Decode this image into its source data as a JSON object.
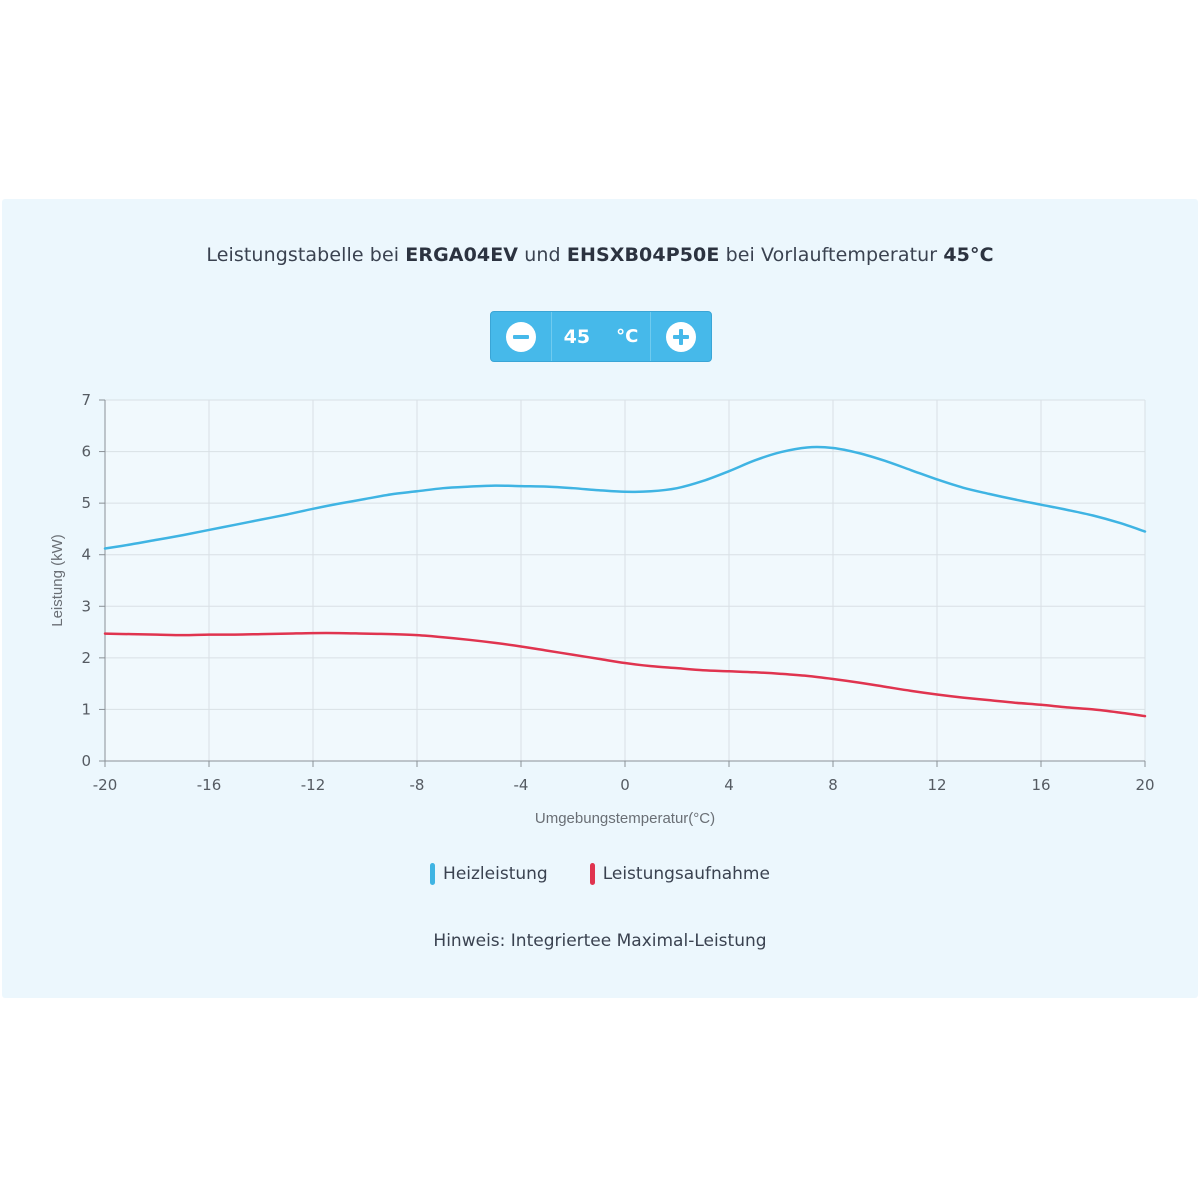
{
  "title": {
    "t1": "Leistungstabelle bei ",
    "b1": "ERGA04EV",
    "t2": " und ",
    "b2": "EHSXB04P50E",
    "t3": " bei Vorlauftemperatur ",
    "b3": "45°C"
  },
  "stepper": {
    "value": "45",
    "unit": "°C",
    "minus_icon": "minus-circle-icon",
    "plus_icon": "plus-circle-icon"
  },
  "legend": {
    "heat": "Heizleistung",
    "power": "Leistungsaufnahme"
  },
  "note": "Hinweis: Integriertee Maximal-Leistung",
  "colors": {
    "heat": "#3fb4e3",
    "power": "#e0344f",
    "accent": "#46b9ea",
    "panel": "#ecf7fd"
  },
  "chart_data": {
    "type": "line",
    "xlabel": "Umgebungstemperatur(°C)",
    "ylabel": "Leistung (kW)",
    "xlim": [
      -20,
      20
    ],
    "ylim": [
      0,
      7
    ],
    "xticks": [
      -20,
      -16,
      -12,
      -8,
      -4,
      0,
      4,
      8,
      12,
      16,
      20
    ],
    "yticks": [
      0,
      1,
      2,
      3,
      4,
      5,
      6,
      7
    ],
    "grid": true,
    "legend_position": "bottom",
    "series": [
      {
        "name": "Heizleistung",
        "color": "#3fb4e3",
        "x": [
          -20,
          -19,
          -18,
          -17,
          -16,
          -15,
          -14,
          -13,
          -12,
          -11,
          -10,
          -9,
          -8,
          -7,
          -6,
          -5,
          -4,
          -3,
          -2,
          -1,
          0,
          1,
          2,
          3,
          4,
          5,
          6,
          7,
          8,
          9,
          10,
          11,
          12,
          13,
          14,
          15,
          16,
          17,
          18,
          19,
          20
        ],
        "y": [
          4.12,
          4.2,
          4.29,
          4.38,
          4.48,
          4.58,
          4.68,
          4.78,
          4.89,
          4.99,
          5.08,
          5.17,
          5.23,
          5.29,
          5.32,
          5.34,
          5.33,
          5.32,
          5.29,
          5.25,
          5.22,
          5.23,
          5.29,
          5.43,
          5.62,
          5.83,
          5.99,
          6.08,
          6.07,
          5.97,
          5.82,
          5.64,
          5.46,
          5.3,
          5.18,
          5.07,
          4.97,
          4.87,
          4.76,
          4.62,
          4.45
        ]
      },
      {
        "name": "Leistungsaufnahme",
        "color": "#e0344f",
        "x": [
          -20,
          -19,
          -18,
          -17,
          -16,
          -15,
          -14,
          -13,
          -12,
          -11,
          -10,
          -9,
          -8,
          -7,
          -6,
          -5,
          -4,
          -3,
          -2,
          -1,
          0,
          1,
          2,
          3,
          4,
          5,
          6,
          7,
          8,
          9,
          10,
          11,
          12,
          13,
          14,
          15,
          16,
          17,
          18,
          19,
          20
        ],
        "y": [
          2.47,
          2.46,
          2.45,
          2.44,
          2.45,
          2.45,
          2.46,
          2.47,
          2.48,
          2.48,
          2.47,
          2.46,
          2.44,
          2.4,
          2.35,
          2.29,
          2.22,
          2.14,
          2.06,
          1.98,
          1.9,
          1.84,
          1.8,
          1.76,
          1.74,
          1.72,
          1.69,
          1.65,
          1.59,
          1.52,
          1.44,
          1.36,
          1.29,
          1.23,
          1.18,
          1.13,
          1.09,
          1.04,
          1.0,
          0.94,
          0.87
        ]
      }
    ]
  }
}
